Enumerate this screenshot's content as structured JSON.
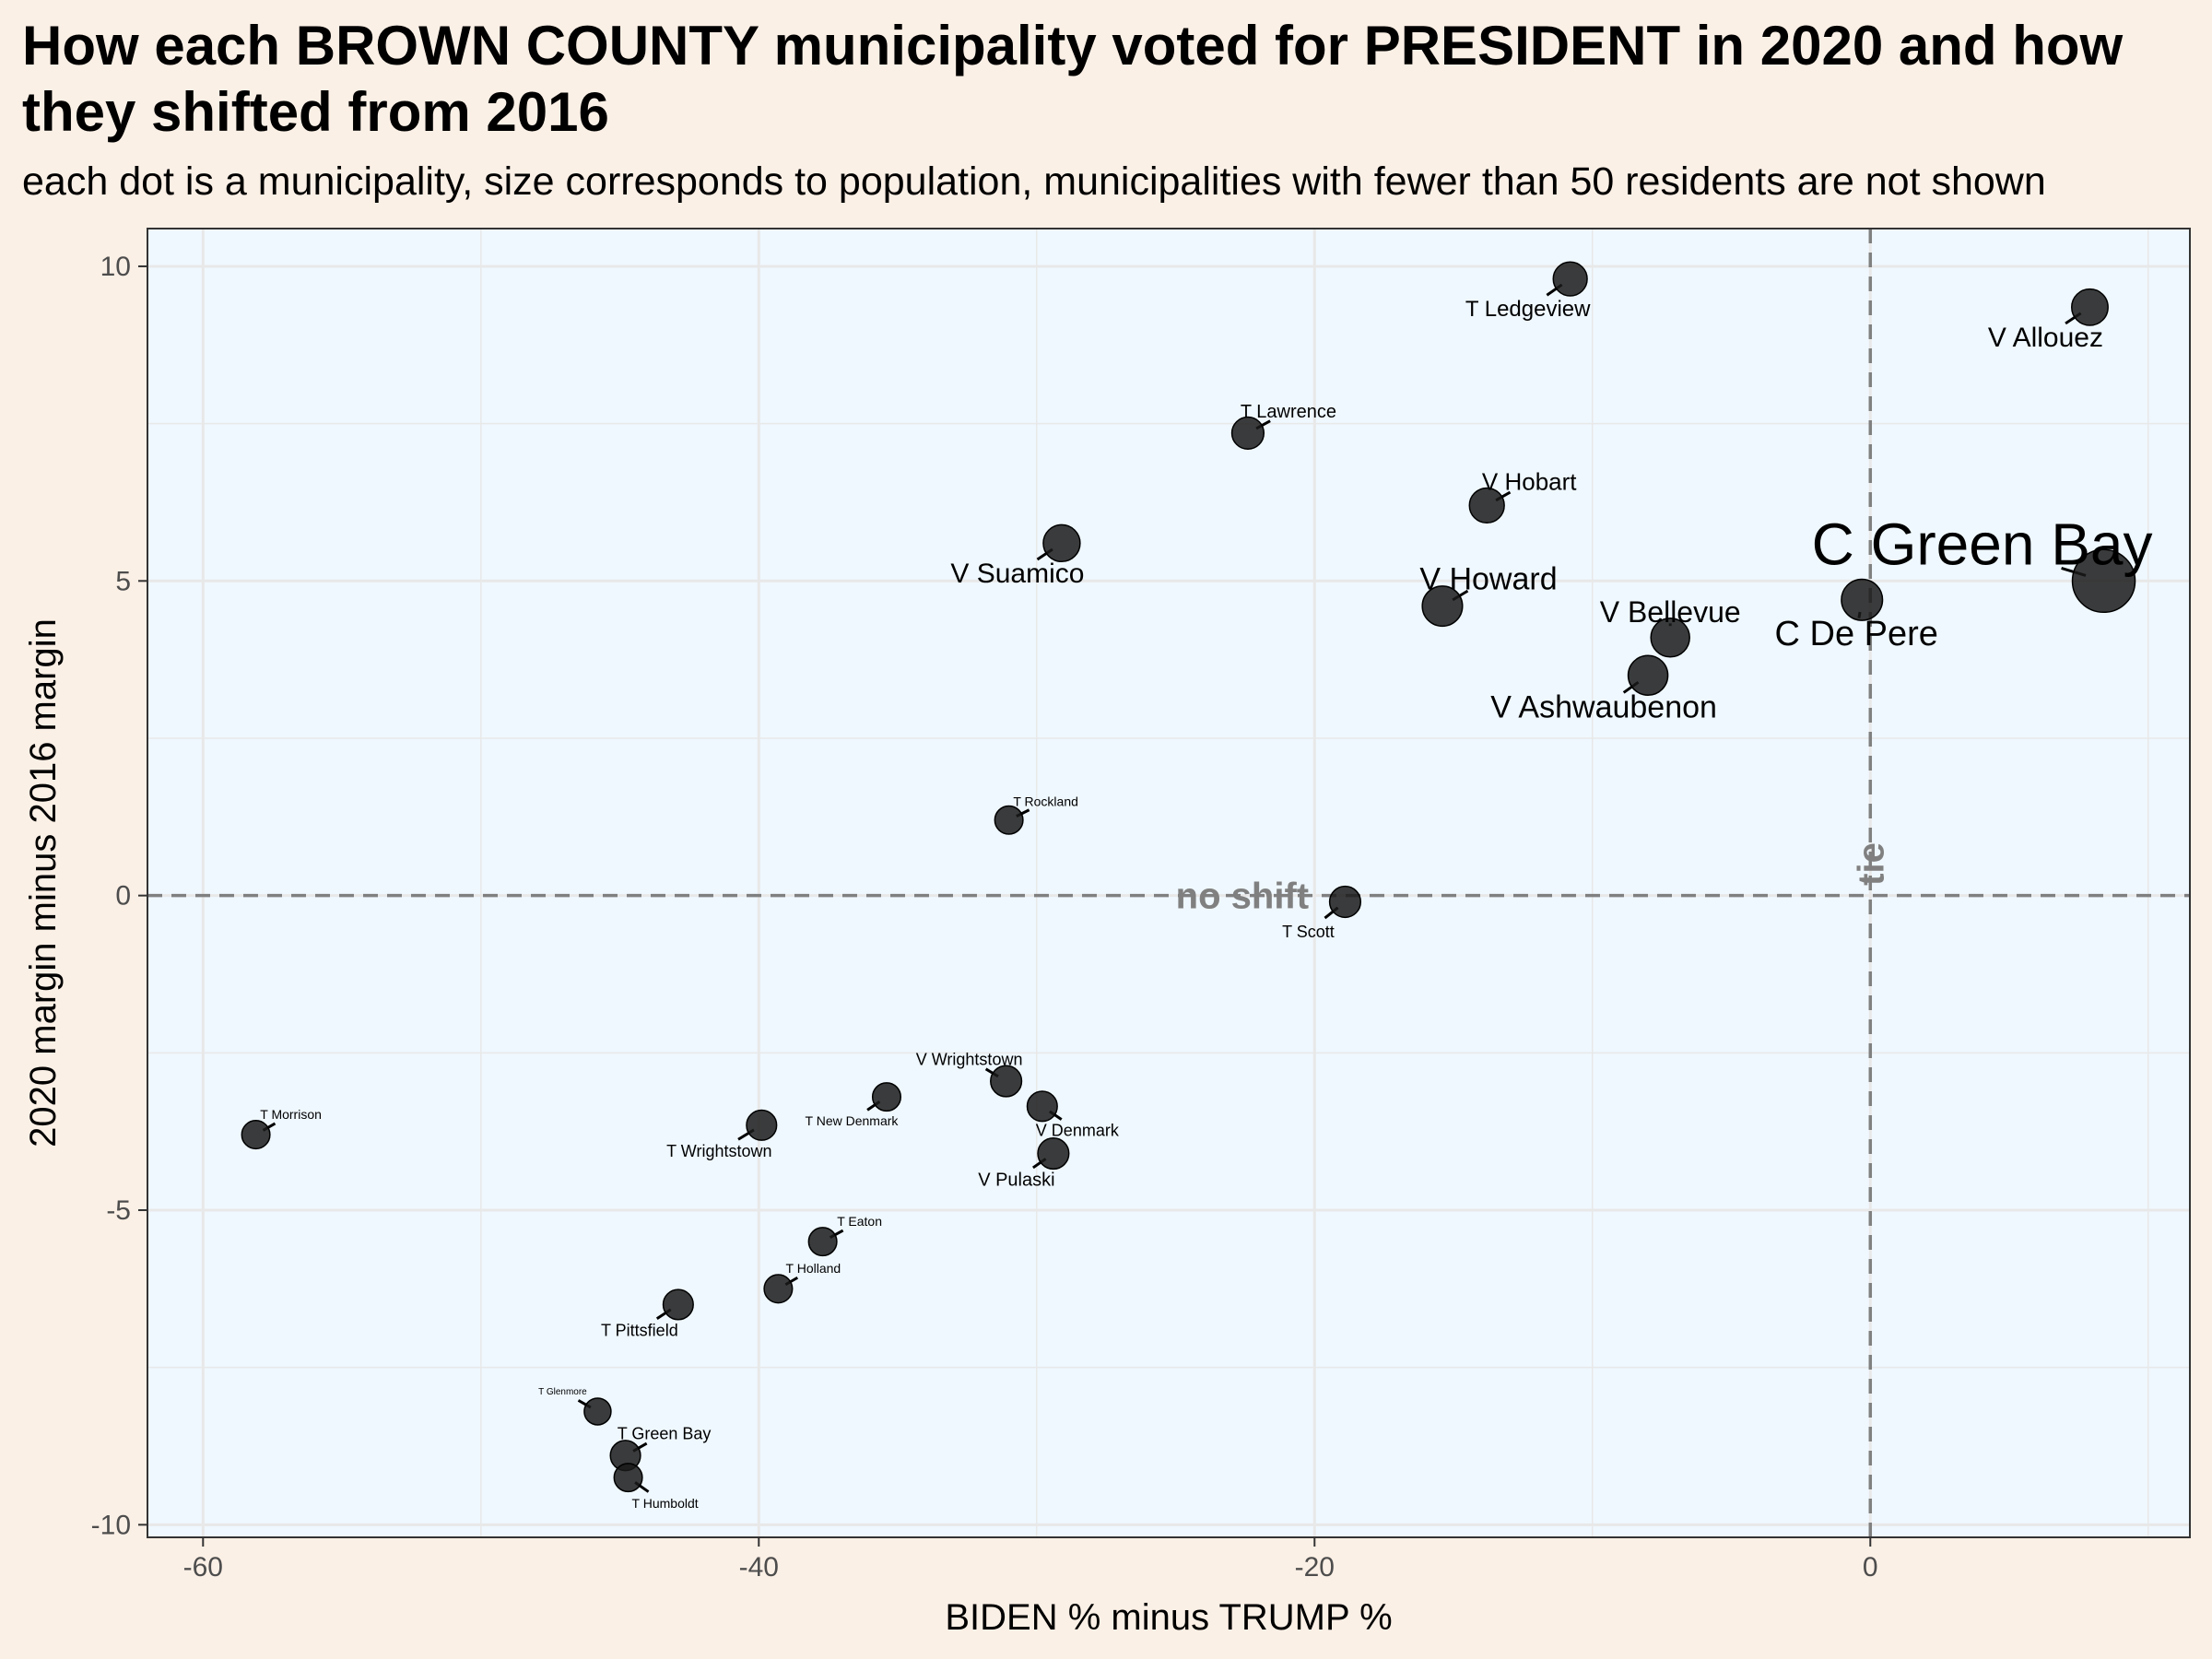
{
  "title": "How each BROWN COUNTY municipality voted for PRESIDENT in 2020 and how they shifted from 2016",
  "subtitle": "each dot is a municipality, size corresponds to population, municipalities with fewer than 50 residents are not shown",
  "colors": {
    "background": "#fbf0e6",
    "panel": "#eff8ff",
    "point": "#1a1a1a",
    "reference_line": "#808080",
    "grid": "#e8e8e8"
  },
  "chart_data": {
    "type": "scatter",
    "xlabel": "BIDEN % minus TRUMP %",
    "ylabel": "2020 margin minus 2016 margin",
    "xlim": [
      -62,
      11.5
    ],
    "ylim": [
      -10.2,
      10.6
    ],
    "x_ticks": [
      -60,
      -40,
      -20,
      0
    ],
    "x_tick_labels": [
      "-60",
      "-40",
      "-20",
      "0"
    ],
    "y_ticks": [
      -10,
      -5,
      0,
      5,
      10
    ],
    "y_tick_labels": [
      "-10",
      "-5",
      "0",
      "5",
      "10"
    ],
    "grid": true,
    "reference_lines": {
      "horizontal": {
        "y": 0,
        "label": "no shift"
      },
      "vertical": {
        "x": 0,
        "label": "tie"
      }
    },
    "points": [
      {
        "label": "C Green Bay",
        "x": 8.4,
        "y": 5.0,
        "size": 1.0
      },
      {
        "label": "C De Pere",
        "x": -0.3,
        "y": 4.7,
        "size": 0.55
      },
      {
        "label": "V Allouez",
        "x": 7.9,
        "y": 9.35,
        "size": 0.45
      },
      {
        "label": "V Ashwaubenon",
        "x": -8.0,
        "y": 3.5,
        "size": 0.52
      },
      {
        "label": "V Bellevue",
        "x": -7.2,
        "y": 4.1,
        "size": 0.5
      },
      {
        "label": "V Howard",
        "x": -15.4,
        "y": 4.6,
        "size": 0.53
      },
      {
        "label": "V Hobart",
        "x": -13.8,
        "y": 6.2,
        "size": 0.42
      },
      {
        "label": "V Suamico",
        "x": -29.1,
        "y": 5.6,
        "size": 0.46
      },
      {
        "label": "T Ledgeview",
        "x": -10.8,
        "y": 9.8,
        "size": 0.4
      },
      {
        "label": "T Lawrence",
        "x": -22.4,
        "y": 7.35,
        "size": 0.36
      },
      {
        "label": "T Rockland",
        "x": -31.0,
        "y": 1.2,
        "size": 0.28
      },
      {
        "label": "T Scott",
        "x": -18.9,
        "y": -0.1,
        "size": 0.34
      },
      {
        "label": "V Wrightstown",
        "x": -31.1,
        "y": -2.95,
        "size": 0.34
      },
      {
        "label": "V Denmark",
        "x": -29.8,
        "y": -3.35,
        "size": 0.32
      },
      {
        "label": "V Pulaski",
        "x": -29.4,
        "y": -4.1,
        "size": 0.34
      },
      {
        "label": "T New Denmark",
        "x": -35.4,
        "y": -3.2,
        "size": 0.28
      },
      {
        "label": "T Wrightstown",
        "x": -39.9,
        "y": -3.65,
        "size": 0.32
      },
      {
        "label": "T Morrison",
        "x": -58.1,
        "y": -3.8,
        "size": 0.28
      },
      {
        "label": "T Eaton",
        "x": -37.7,
        "y": -5.5,
        "size": 0.28
      },
      {
        "label": "T Holland",
        "x": -39.3,
        "y": -6.25,
        "size": 0.28
      },
      {
        "label": "T Pittsfield",
        "x": -42.9,
        "y": -6.5,
        "size": 0.32
      },
      {
        "label": "T Glenmore",
        "x": -45.8,
        "y": -8.2,
        "size": 0.25
      },
      {
        "label": "T Green Bay",
        "x": -44.8,
        "y": -8.9,
        "size": 0.32
      },
      {
        "label": "T Humboldt",
        "x": -44.7,
        "y": -9.25,
        "size": 0.28
      }
    ]
  }
}
